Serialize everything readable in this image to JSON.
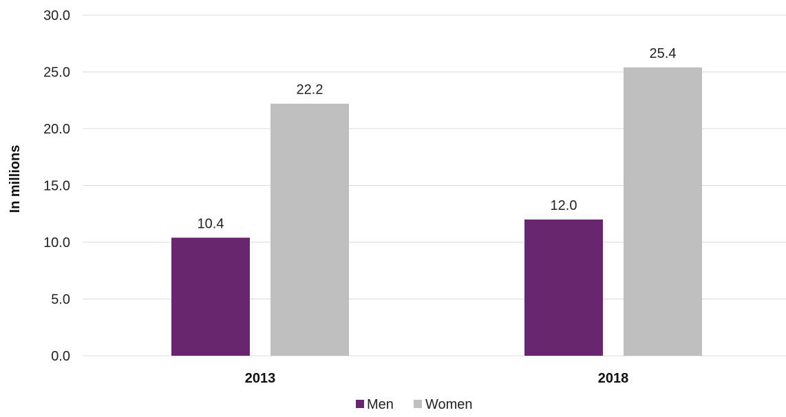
{
  "chart_data": {
    "type": "bar",
    "categories": [
      "2013",
      "2018"
    ],
    "series": [
      {
        "name": "Men",
        "values": [
          10.4,
          12.0
        ],
        "color": "#68266f"
      },
      {
        "name": "Women",
        "values": [
          22.2,
          25.4
        ],
        "color": "#bfbfbf"
      }
    ],
    "data_labels": [
      [
        "10.4",
        "12.0"
      ],
      [
        "22.2",
        "25.4"
      ]
    ],
    "y_ticks": [
      "0.0",
      "5.0",
      "10.0",
      "15.0",
      "20.0",
      "25.0",
      "30.0"
    ],
    "ylim": [
      0,
      30
    ],
    "ylabel": "In millions",
    "xlabel": "",
    "title": "",
    "grid": true,
    "legend_position": "bottom",
    "gridline_color": "#d9d9d9"
  }
}
